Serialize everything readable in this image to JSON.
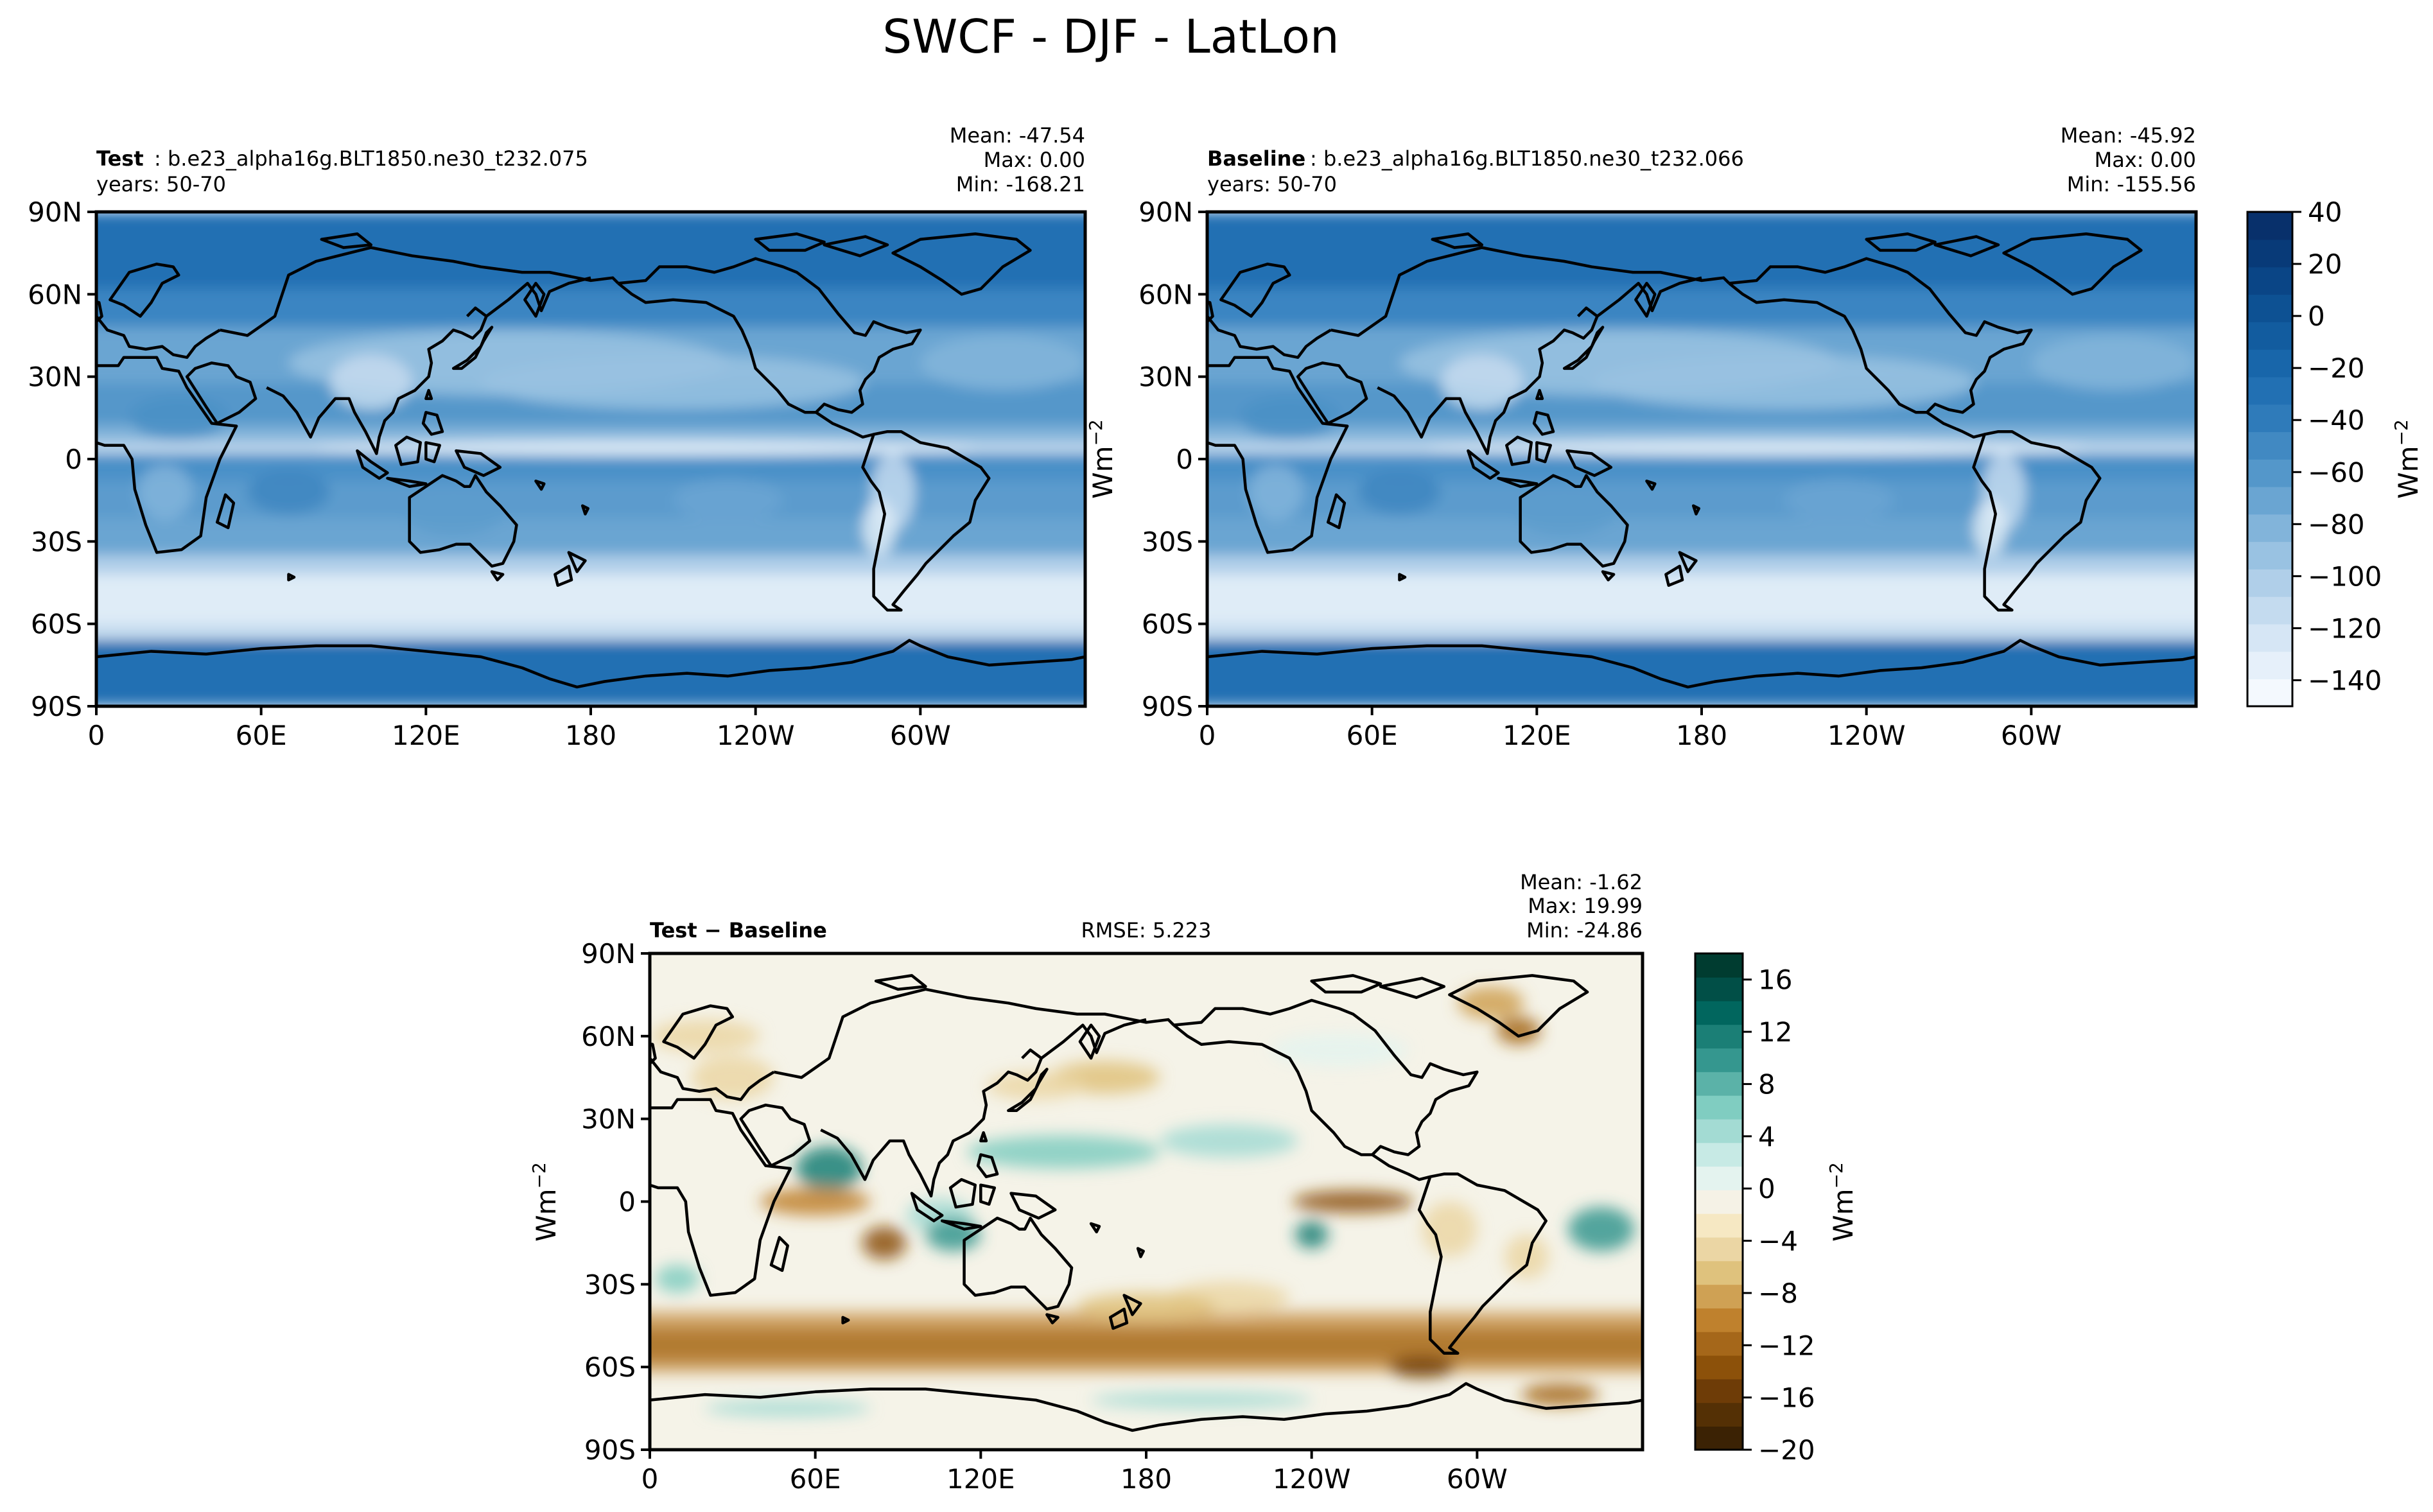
{
  "figure_title": "SWCF - DJF - LatLon",
  "unit_base": "Wm",
  "unit_exp": "−2",
  "colors": {
    "blues": [
      "#f7fbff",
      "#e2eef9",
      "#cde0f1",
      "#b0d2e8",
      "#89bfdd",
      "#60a6d2",
      "#3e8ec4",
      "#2172b6",
      "#0a549e",
      "#08306b"
    ],
    "diverging": [
      "#543005",
      "#8c510a",
      "#bf812d",
      "#dfc27d",
      "#f6e8c3",
      "#f5f5f0",
      "#c7eae5",
      "#80cdc1",
      "#35978f",
      "#01665e",
      "#003c30"
    ]
  },
  "chart_data": [
    {
      "type": "heatmap",
      "name": "test",
      "label_bold": "Test",
      "label_rest": ": b.e23_alpha16g.BLT1850.ne30_t232.075",
      "years": "years: 50-70",
      "stats": [
        "Mean: -47.54",
        "Max:  0.00",
        "Min: -168.21"
      ],
      "ylabel": "",
      "xticks": [
        "0",
        "60E",
        "120E",
        "180",
        "120W",
        "60W"
      ],
      "yticks": [
        "90N",
        "60N",
        "30N",
        "0",
        "30S",
        "60S",
        "90S"
      ],
      "x_range": [
        0,
        360
      ],
      "y_range": [
        -90,
        90
      ]
    },
    {
      "type": "heatmap",
      "name": "baseline",
      "label_bold": "Baseline",
      "label_rest": ": b.e23_alpha16g.BLT1850.ne30_t232.066",
      "years": "years: 50-70",
      "stats": [
        "Mean: -45.92",
        "Max:  0.00",
        "Min: -155.56"
      ],
      "ylabel": "Wm",
      "xticks": [
        "0",
        "60E",
        "120E",
        "180",
        "120W",
        "60W"
      ],
      "yticks": [
        "90N",
        "60N",
        "30N",
        "0",
        "30S",
        "60S",
        "90S"
      ],
      "x_range": [
        0,
        360
      ],
      "y_range": [
        -90,
        90
      ],
      "colorbar": {
        "ticks": [
          "40",
          "20",
          "0",
          "−20",
          "−40",
          "−60",
          "−80",
          "−100",
          "−120",
          "−140"
        ],
        "tick_values": [
          40,
          20,
          0,
          -20,
          -40,
          -60,
          -80,
          -100,
          -120,
          -140
        ],
        "range": [
          -150,
          40
        ],
        "label": "Wm"
      }
    },
    {
      "type": "heatmap",
      "name": "diff",
      "label_bold": "Test − Baseline",
      "rmse": "RMSE: 5.223",
      "stats": [
        "Mean: -1.62",
        "Max: 19.99",
        "Min: -24.86"
      ],
      "ylabel": "Wm",
      "xticks": [
        "0",
        "60E",
        "120E",
        "180",
        "120W",
        "60W"
      ],
      "yticks": [
        "90N",
        "60N",
        "30N",
        "0",
        "30S",
        "60S",
        "90S"
      ],
      "x_range": [
        0,
        360
      ],
      "y_range": [
        -90,
        90
      ],
      "colorbar": {
        "ticks": [
          "16",
          "12",
          "8",
          "4",
          "0",
          "−4",
          "−8",
          "−12",
          "−16",
          "−20"
        ],
        "tick_values": [
          16,
          12,
          8,
          4,
          0,
          -4,
          -8,
          -12,
          -16,
          -20
        ],
        "range": [
          -20,
          18
        ],
        "label": "Wm"
      }
    }
  ]
}
